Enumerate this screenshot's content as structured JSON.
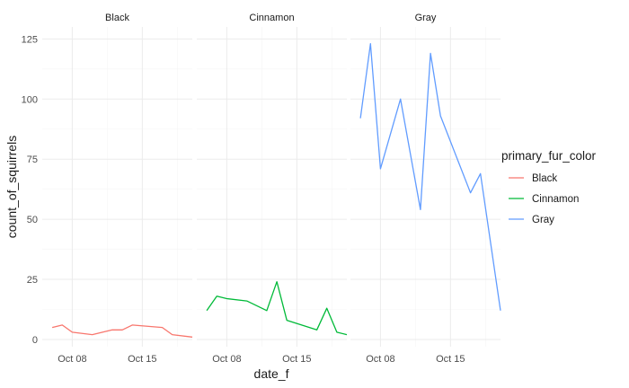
{
  "chart_data": {
    "type": "line",
    "facet_by": "primary_fur_color",
    "xlabel": "date_f",
    "ylabel": "count_of_squirrels",
    "x_tick_labels": [
      "Oct 08",
      "Oct 15"
    ],
    "x_ticks": [
      "2018-10-08",
      "2018-10-15"
    ],
    "xlim": [
      "2018-10-05",
      "2018-10-20"
    ],
    "y_ticks": [
      0,
      25,
      50,
      75,
      100,
      125
    ],
    "ylim": [
      -3,
      130
    ],
    "grid": true,
    "legend": {
      "title": "primary_fur_color",
      "position": "right",
      "entries": [
        "Black",
        "Cinnamon",
        "Gray"
      ]
    },
    "series": [
      {
        "name": "Black",
        "color": "#F8766D",
        "points": [
          [
            "2018-10-06",
            5
          ],
          [
            "2018-10-07",
            6
          ],
          [
            "2018-10-08",
            3
          ],
          [
            "2018-10-10",
            2
          ],
          [
            "2018-10-12",
            4
          ],
          [
            "2018-10-13",
            4
          ],
          [
            "2018-10-14",
            6
          ],
          [
            "2018-10-17",
            5
          ],
          [
            "2018-10-18",
            2
          ],
          [
            "2018-10-20",
            1
          ]
        ]
      },
      {
        "name": "Cinnamon",
        "color": "#00BA38",
        "points": [
          [
            "2018-10-06",
            12
          ],
          [
            "2018-10-07",
            18
          ],
          [
            "2018-10-08",
            17
          ],
          [
            "2018-10-10",
            16
          ],
          [
            "2018-10-12",
            12
          ],
          [
            "2018-10-13",
            24
          ],
          [
            "2018-10-14",
            8
          ],
          [
            "2018-10-17",
            4
          ],
          [
            "2018-10-18",
            13
          ],
          [
            "2018-10-19",
            3
          ],
          [
            "2018-10-20",
            2
          ]
        ]
      },
      {
        "name": "Gray",
        "color": "#619CFF",
        "points": [
          [
            "2018-10-06",
            92
          ],
          [
            "2018-10-07",
            123
          ],
          [
            "2018-10-08",
            71
          ],
          [
            "2018-10-10",
            100
          ],
          [
            "2018-10-12",
            54
          ],
          [
            "2018-10-13",
            119
          ],
          [
            "2018-10-14",
            93
          ],
          [
            "2018-10-17",
            61
          ],
          [
            "2018-10-18",
            69
          ],
          [
            "2018-10-20",
            12
          ]
        ]
      }
    ]
  }
}
